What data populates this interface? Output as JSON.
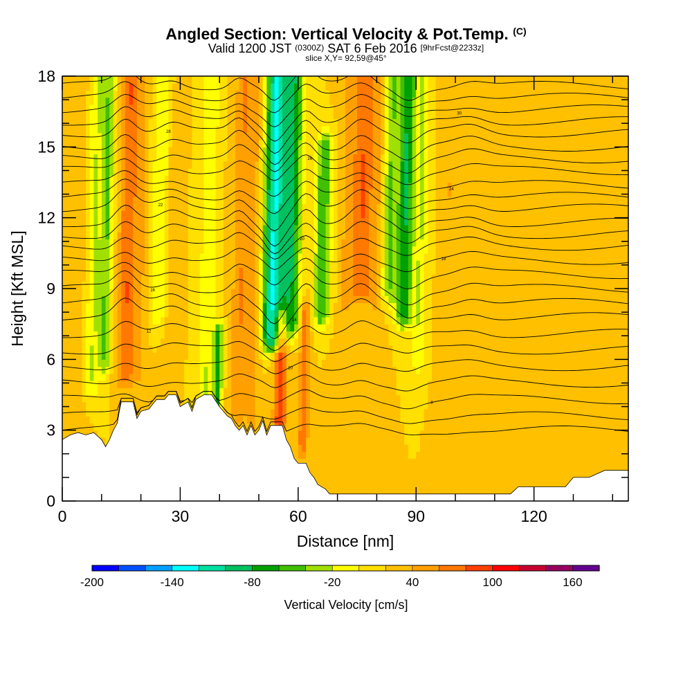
{
  "title": {
    "main": "Angled Section: Vertical Velocity & Pot.Temp.",
    "tag": "(C)"
  },
  "subtitle": {
    "valid": "Valid 1200 JST",
    "utc": "(0300Z)",
    "date": "SAT 6 Feb 2016",
    "forecast": "[9hrFcst@2233z]"
  },
  "slice_label": "slice X,Y= 92,59@45°",
  "chart_data": {
    "type": "heatmap",
    "xlabel": "Distance [nm]",
    "ylabel": "Height [Kft MSL]",
    "xlim": [
      0,
      144
    ],
    "ylim": [
      0,
      18
    ],
    "xticks": [
      0,
      30,
      60,
      90,
      120
    ],
    "xtick_labels": [
      "0",
      "30",
      "60",
      "90",
      "120"
    ],
    "yticks": [
      0,
      3,
      6,
      9,
      12,
      15,
      18
    ],
    "ytick_labels": [
      "0",
      "3",
      "6",
      "9",
      "12",
      "15",
      "18"
    ],
    "background_value": 20,
    "velocity_bands": [
      {
        "x": 3,
        "w": 2.2,
        "v": 40,
        "y0": 2.5,
        "y1": 18
      },
      {
        "x": 8,
        "w": 1.8,
        "v": -20,
        "y0": 5,
        "y1": 18
      },
      {
        "x": 11,
        "w": 1.5,
        "v": -40,
        "y0": 6,
        "y1": 18
      },
      {
        "x": 16.5,
        "w": 2.2,
        "v": 80,
        "y0": 5.5,
        "y1": 18
      },
      {
        "x": 20,
        "w": 1.4,
        "v": 40,
        "y0": 5.5,
        "y1": 18
      },
      {
        "x": 24.5,
        "w": 2.0,
        "v": -20,
        "y0": 8,
        "y1": 18
      },
      {
        "x": 28,
        "w": 1.6,
        "v": 40,
        "y0": 3,
        "y1": 17
      },
      {
        "x": 37,
        "w": 2.0,
        "v": -20,
        "y0": 4.5,
        "y1": 18
      },
      {
        "x": 40,
        "w": 1.2,
        "v": -60,
        "y0": 4,
        "y1": 7
      },
      {
        "x": 45.5,
        "w": 2.4,
        "v": 60,
        "y0": 4,
        "y1": 18
      },
      {
        "x": 49,
        "w": 1.6,
        "v": 40,
        "y0": 3,
        "y1": 18
      },
      {
        "x": 53.5,
        "w": 2.6,
        "v": -120,
        "y0": 7,
        "y1": 18
      },
      {
        "x": 56,
        "w": 1.6,
        "v": 100,
        "y0": 3.5,
        "y1": 7.5
      },
      {
        "x": 58,
        "w": 2.4,
        "v": -80,
        "y0": 7.5,
        "y1": 18
      },
      {
        "x": 62,
        "w": 1.2,
        "v": 80,
        "y0": 2.5,
        "y1": 8
      },
      {
        "x": 66,
        "w": 2.0,
        "v": -60,
        "y0": 8,
        "y1": 15
      },
      {
        "x": 72,
        "w": 1.8,
        "v": 40,
        "y0": 3,
        "y1": 18
      },
      {
        "x": 76,
        "w": 2.8,
        "v": 80,
        "y0": 9,
        "y1": 18
      },
      {
        "x": 80,
        "w": 1.6,
        "v": 40,
        "y0": 3,
        "y1": 18
      },
      {
        "x": 83,
        "w": 2.0,
        "v": -40,
        "y0": 9,
        "y1": 18
      },
      {
        "x": 87,
        "w": 2.0,
        "v": -80,
        "y0": 8,
        "y1": 18
      },
      {
        "x": 91,
        "w": 1.6,
        "v": -20,
        "y0": 6,
        "y1": 18
      },
      {
        "x": 98,
        "w": 1.8,
        "v": 40,
        "y0": 5,
        "y1": 18
      },
      {
        "x": 104,
        "w": 2.2,
        "v": 40,
        "y0": 1,
        "y1": 18
      },
      {
        "x": 113,
        "w": 2.5,
        "v": 40,
        "y0": 0.5,
        "y1": 4
      },
      {
        "x": 126,
        "w": 2.5,
        "v": 40,
        "y0": 0.5,
        "y1": 4
      },
      {
        "x": 138,
        "w": 3.0,
        "v": 40,
        "y0": 1,
        "y1": 5
      }
    ],
    "terrain": [
      [
        0,
        2.6
      ],
      [
        2,
        2.8
      ],
      [
        4,
        2.9
      ],
      [
        6,
        2.8
      ],
      [
        8,
        2.9
      ],
      [
        10,
        2.6
      ],
      [
        11,
        2.3
      ],
      [
        12,
        2.6
      ],
      [
        13,
        3.0
      ],
      [
        14,
        3.3
      ],
      [
        14.5,
        3.8
      ],
      [
        15,
        4.2
      ],
      [
        18,
        4.2
      ],
      [
        19,
        3.5
      ],
      [
        20,
        3.8
      ],
      [
        22,
        3.9
      ],
      [
        24,
        4.3
      ],
      [
        26,
        4.3
      ],
      [
        27,
        4.5
      ],
      [
        29,
        4.5
      ],
      [
        30,
        4.0
      ],
      [
        32,
        4.2
      ],
      [
        33,
        3.8
      ],
      [
        34,
        4.3
      ],
      [
        36,
        4.5
      ],
      [
        38,
        4.5
      ],
      [
        40,
        4.0
      ],
      [
        42,
        3.6
      ],
      [
        43,
        3.5
      ],
      [
        44,
        3.2
      ],
      [
        45,
        3.0
      ],
      [
        46,
        3.2
      ],
      [
        47,
        2.8
      ],
      [
        48,
        3.2
      ],
      [
        49,
        2.8
      ],
      [
        50,
        3.0
      ],
      [
        51,
        3.4
      ],
      [
        52,
        2.8
      ],
      [
        53,
        3.2
      ],
      [
        56,
        3.2
      ],
      [
        57,
        2.6
      ],
      [
        58,
        2.3
      ],
      [
        59,
        1.8
      ],
      [
        60,
        1.6
      ],
      [
        62,
        1.6
      ],
      [
        63,
        1.2
      ],
      [
        64,
        1.0
      ],
      [
        65,
        0.7
      ],
      [
        67,
        0.5
      ],
      [
        68,
        0.3
      ],
      [
        85,
        0.3
      ],
      [
        88,
        0.3
      ],
      [
        91,
        0.3
      ],
      [
        96,
        0.3
      ],
      [
        100,
        0.3
      ],
      [
        104,
        0.3
      ],
      [
        114,
        0.3
      ],
      [
        116,
        0.6
      ],
      [
        128,
        0.6
      ],
      [
        130,
        1.0
      ],
      [
        134,
        1.0
      ],
      [
        138,
        1.3
      ],
      [
        144,
        1.3
      ]
    ],
    "isentropes": [
      {
        "base": 3.0,
        "label": "4"
      },
      {
        "base": 3.6
      },
      {
        "base": 4.3,
        "label": "8"
      },
      {
        "base": 5.0
      },
      {
        "base": 5.7,
        "label": "10"
      },
      {
        "base": 6.4
      },
      {
        "base": 7.1,
        "label": "12"
      },
      {
        "base": 7.8,
        "label": "14"
      },
      {
        "base": 8.4
      },
      {
        "base": 9.0,
        "label": "16"
      },
      {
        "base": 9.6
      },
      {
        "base": 10.2,
        "label": "18"
      },
      {
        "base": 10.8
      },
      {
        "base": 11.3,
        "label": "20"
      },
      {
        "base": 11.8
      },
      {
        "base": 12.4,
        "label": "22"
      },
      {
        "base": 12.9
      },
      {
        "base": 13.4,
        "label": "24"
      },
      {
        "base": 14.0
      },
      {
        "base": 14.5,
        "label": "26"
      },
      {
        "base": 15.0
      },
      {
        "base": 15.6,
        "label": "28"
      },
      {
        "base": 16.1
      },
      {
        "base": 16.6,
        "label": "30"
      },
      {
        "base": 17.1
      },
      {
        "base": 17.6
      }
    ],
    "colorbar": {
      "label": "Vertical Velocity [cm/s]",
      "min": -200,
      "max": 180,
      "step": 20,
      "tick_values": [
        -200,
        -140,
        -80,
        -20,
        40,
        100,
        160
      ],
      "tick_labels": [
        "-200",
        "-140",
        "-80",
        "-20",
        "40",
        "100",
        "160"
      ],
      "colors": [
        "#0000ff",
        "#0050ff",
        "#00a0ff",
        "#00ffff",
        "#00e0a0",
        "#00c060",
        "#00a000",
        "#40c000",
        "#a0e000",
        "#ffff00",
        "#ffe000",
        "#ffc000",
        "#ffa000",
        "#ff7800",
        "#ff4000",
        "#ff0000",
        "#c80030",
        "#960060",
        "#640090"
      ]
    }
  }
}
